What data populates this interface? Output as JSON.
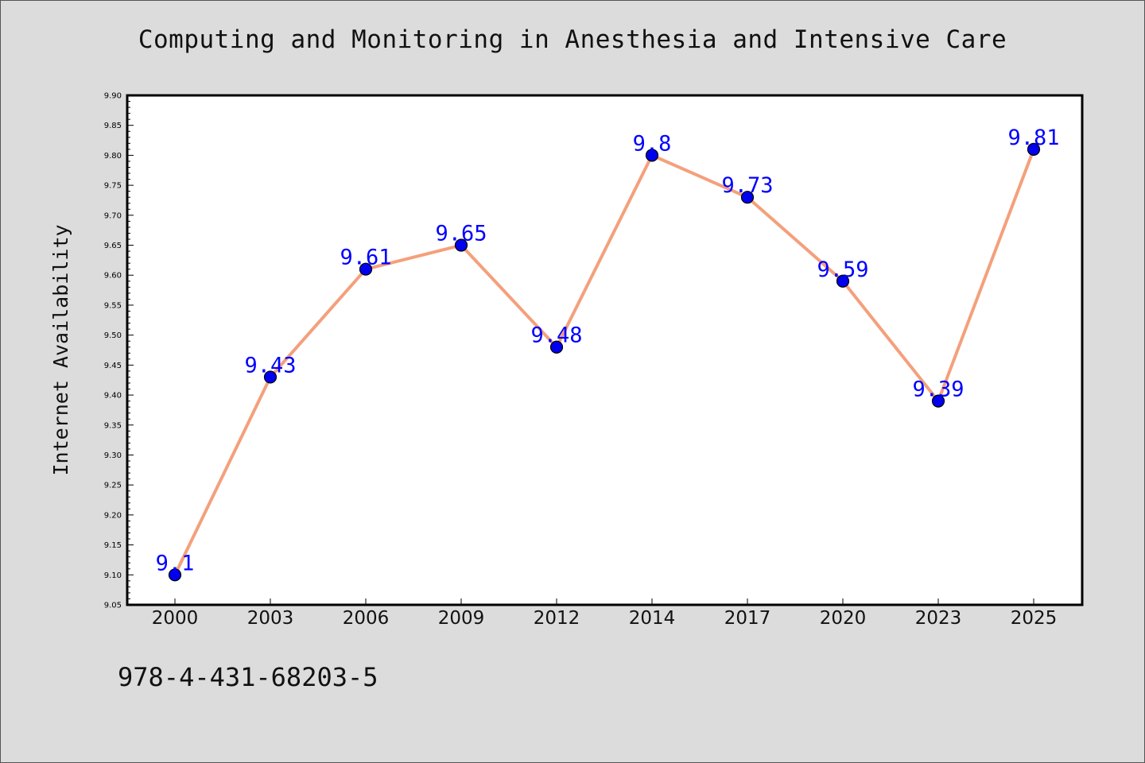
{
  "chart_data": {
    "type": "line",
    "title": "Computing and Monitoring in Anesthesia and Intensive Care",
    "ylabel": "Internet Availability",
    "xlabel": "",
    "categories": [
      "2000",
      "2003",
      "2006",
      "2009",
      "2012",
      "2014",
      "2017",
      "2020",
      "2023",
      "2025"
    ],
    "values": [
      9.1,
      9.43,
      9.61,
      9.65,
      9.48,
      9.8,
      9.73,
      9.59,
      9.39,
      9.81
    ],
    "data_labels": [
      "9.1",
      "9.43",
      "9.61",
      "9.65",
      "9.48",
      "9.8",
      "9.73",
      "9.59",
      "9.39",
      "9.81"
    ],
    "ylim": [
      9.05,
      9.9
    ],
    "yticks": [
      "9.05",
      "9.10",
      "9.15",
      "9.20",
      "9.25",
      "9.30",
      "9.35",
      "9.40",
      "9.45",
      "9.50",
      "9.55",
      "9.60",
      "9.65",
      "9.70",
      "9.75",
      "9.80",
      "9.85",
      "9.90"
    ],
    "grid": false,
    "colors": {
      "line": "#f4a07c",
      "marker": "#0000ee",
      "marker_edge": "#000000",
      "data_label": "#0000ff",
      "plot_background": "#ffffff",
      "figure_background": "#dcdcdc"
    }
  },
  "footer": {
    "isbn": "978-4-431-68203-5"
  }
}
